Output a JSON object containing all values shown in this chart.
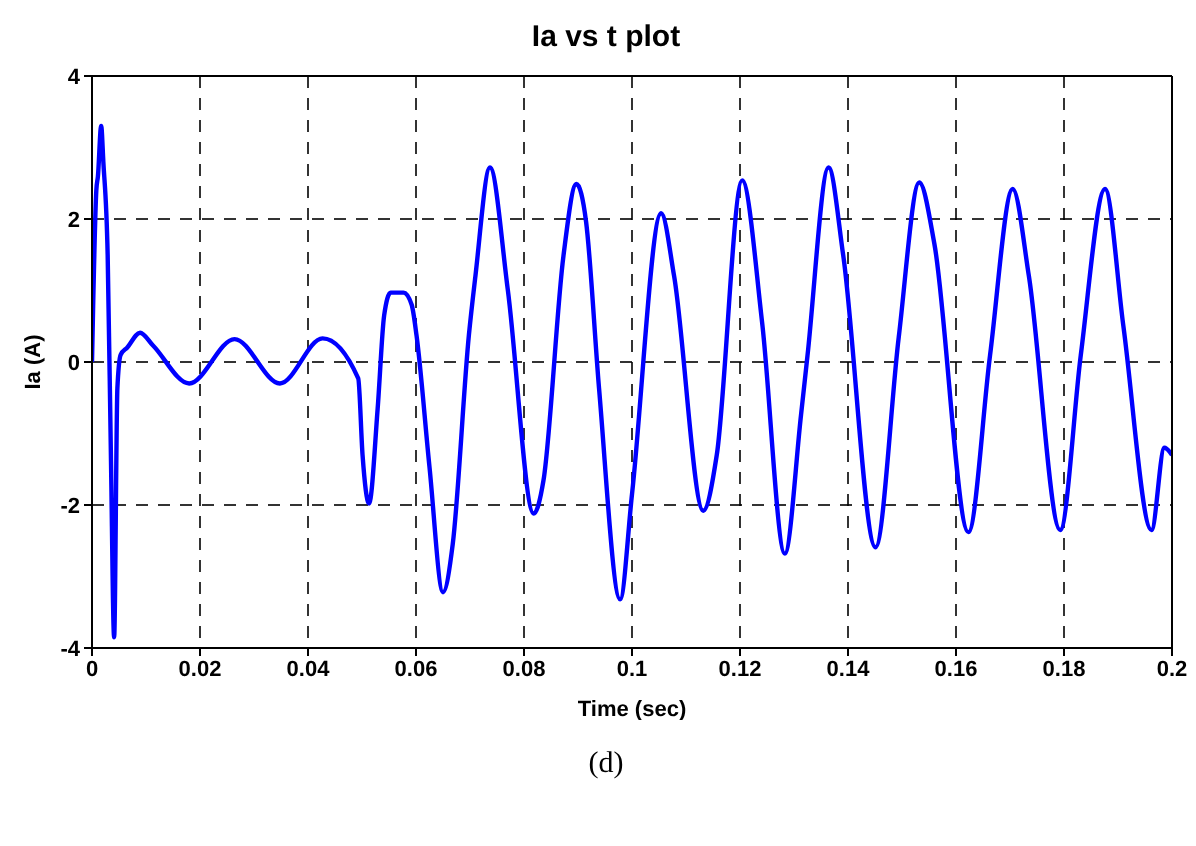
{
  "chart_data": {
    "type": "line",
    "title": "Ia vs t plot",
    "xlabel": "Time (sec)",
    "ylabel": "Ia  (A)",
    "annotations": [
      "(d)"
    ],
    "x": [
      0,
      0.0002,
      0.0008,
      0.0011,
      0.0017,
      0.0021,
      0.0029,
      0.0035,
      0.0041,
      0.0047,
      0.0053,
      0.0065,
      0.0089,
      0.0113,
      0.018,
      0.0264,
      0.0348,
      0.0427,
      0.0493,
      0.0501,
      0.0513,
      0.0529,
      0.0541,
      0.0553,
      0.0577,
      0.0592,
      0.0601,
      0.0625,
      0.065,
      0.0668,
      0.0698,
      0.071,
      0.0737,
      0.077,
      0.0818,
      0.0836,
      0.0873,
      0.0897,
      0.0915,
      0.0939,
      0.0978,
      0.1,
      0.1054,
      0.1078,
      0.1132,
      0.1157,
      0.1204,
      0.1241,
      0.1283,
      0.1313,
      0.1325,
      0.1364,
      0.1391,
      0.1451,
      0.1494,
      0.1532,
      0.156,
      0.1623,
      0.1663,
      0.1705,
      0.1735,
      0.1793,
      0.1831,
      0.1876,
      0.191,
      0.1962,
      0.1986,
      0.2
    ],
    "series": [
      {
        "color": "#0000ff",
        "values": [
          0,
          0.74,
          2.4,
          2.6,
          3.3,
          2.8,
          1.5,
          -1.3,
          -3.85,
          -0.37,
          0.1,
          0.2,
          0.41,
          0.23,
          -0.3,
          0.32,
          -0.3,
          0.33,
          -0.23,
          -1.3,
          -1.98,
          -0.65,
          0.65,
          0.97,
          0.97,
          0.8,
          0.37,
          -1.47,
          -3.22,
          -2.55,
          0.38,
          1.2,
          2.72,
          1.01,
          -2.12,
          -1.66,
          1.48,
          2.49,
          1.96,
          -0.37,
          -3.32,
          -1.85,
          2.08,
          1.2,
          -2.08,
          -1.3,
          2.54,
          0.55,
          -2.68,
          -0.74,
          0.09,
          2.72,
          1.5,
          -2.59,
          0.35,
          2.51,
          1.65,
          -2.38,
          0.09,
          2.42,
          1.2,
          -2.35,
          0.09,
          2.42,
          0.5,
          -2.35,
          -1.2,
          -1.3
        ]
      }
    ],
    "xlim": [
      0,
      0.2
    ],
    "xticks": [
      0,
      0.02,
      0.04,
      0.06,
      0.08,
      0.1,
      0.12,
      0.14,
      0.16,
      0.18,
      0.2
    ],
    "ylim": [
      -4,
      4
    ],
    "yticks": [
      -4,
      -2,
      0,
      2,
      4
    ],
    "grid": true,
    "legend": false,
    "marker": "none",
    "line_style": "solid"
  }
}
